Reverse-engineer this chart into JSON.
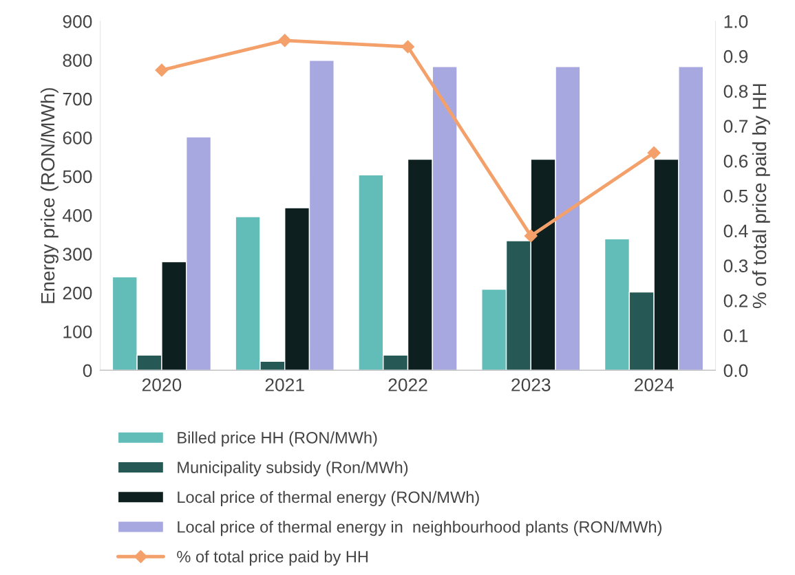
{
  "chart_data": {
    "type": "bar",
    "ylabel": "Energy price (RON/MWh)",
    "y2label": "% of total price paid by HH",
    "categories": [
      "2020",
      "2021",
      "2022",
      "2023",
      "2024"
    ],
    "series": [
      {
        "name": "Billed price HH (RON/MWh)",
        "color": "#62bdb9",
        "values": [
          241,
          396,
          504,
          209,
          339
        ]
      },
      {
        "name": "Municipality subsidy (Ron/MWh)",
        "color": "#265955",
        "values": [
          39,
          23,
          39,
          334,
          202
        ]
      },
      {
        "name": "Local price of thermal energy (RON/MWh)",
        "color": "#0e1f1f",
        "values": [
          280,
          419,
          544,
          544,
          544
        ]
      },
      {
        "name": "Local price of thermal energy in  neighbourhood plants (RON/MWh)",
        "color": "#a8a8e0",
        "values": [
          602,
          799,
          783,
          783,
          783
        ]
      },
      {
        "name": "% of total price paid by HH",
        "color": "#f4a06a",
        "type": "line",
        "axis": "y2",
        "marker": "diamond",
        "values": [
          0.86,
          0.945,
          0.927,
          0.385,
          0.623
        ]
      }
    ],
    "ylim": [
      0,
      900
    ],
    "yticks": [
      0,
      100,
      200,
      300,
      400,
      500,
      600,
      700,
      800,
      900
    ],
    "y2lim": [
      0,
      1.0
    ],
    "y2ticks": [
      {
        "value": 0,
        "label": "0.0"
      },
      0.1,
      0.2,
      0.3,
      0.4,
      0.5,
      0.6,
      0.7,
      0.8,
      0.9,
      {
        "value": 1.0,
        "label": "1.0"
      }
    ],
    "grid": false,
    "legend": "bottom"
  }
}
